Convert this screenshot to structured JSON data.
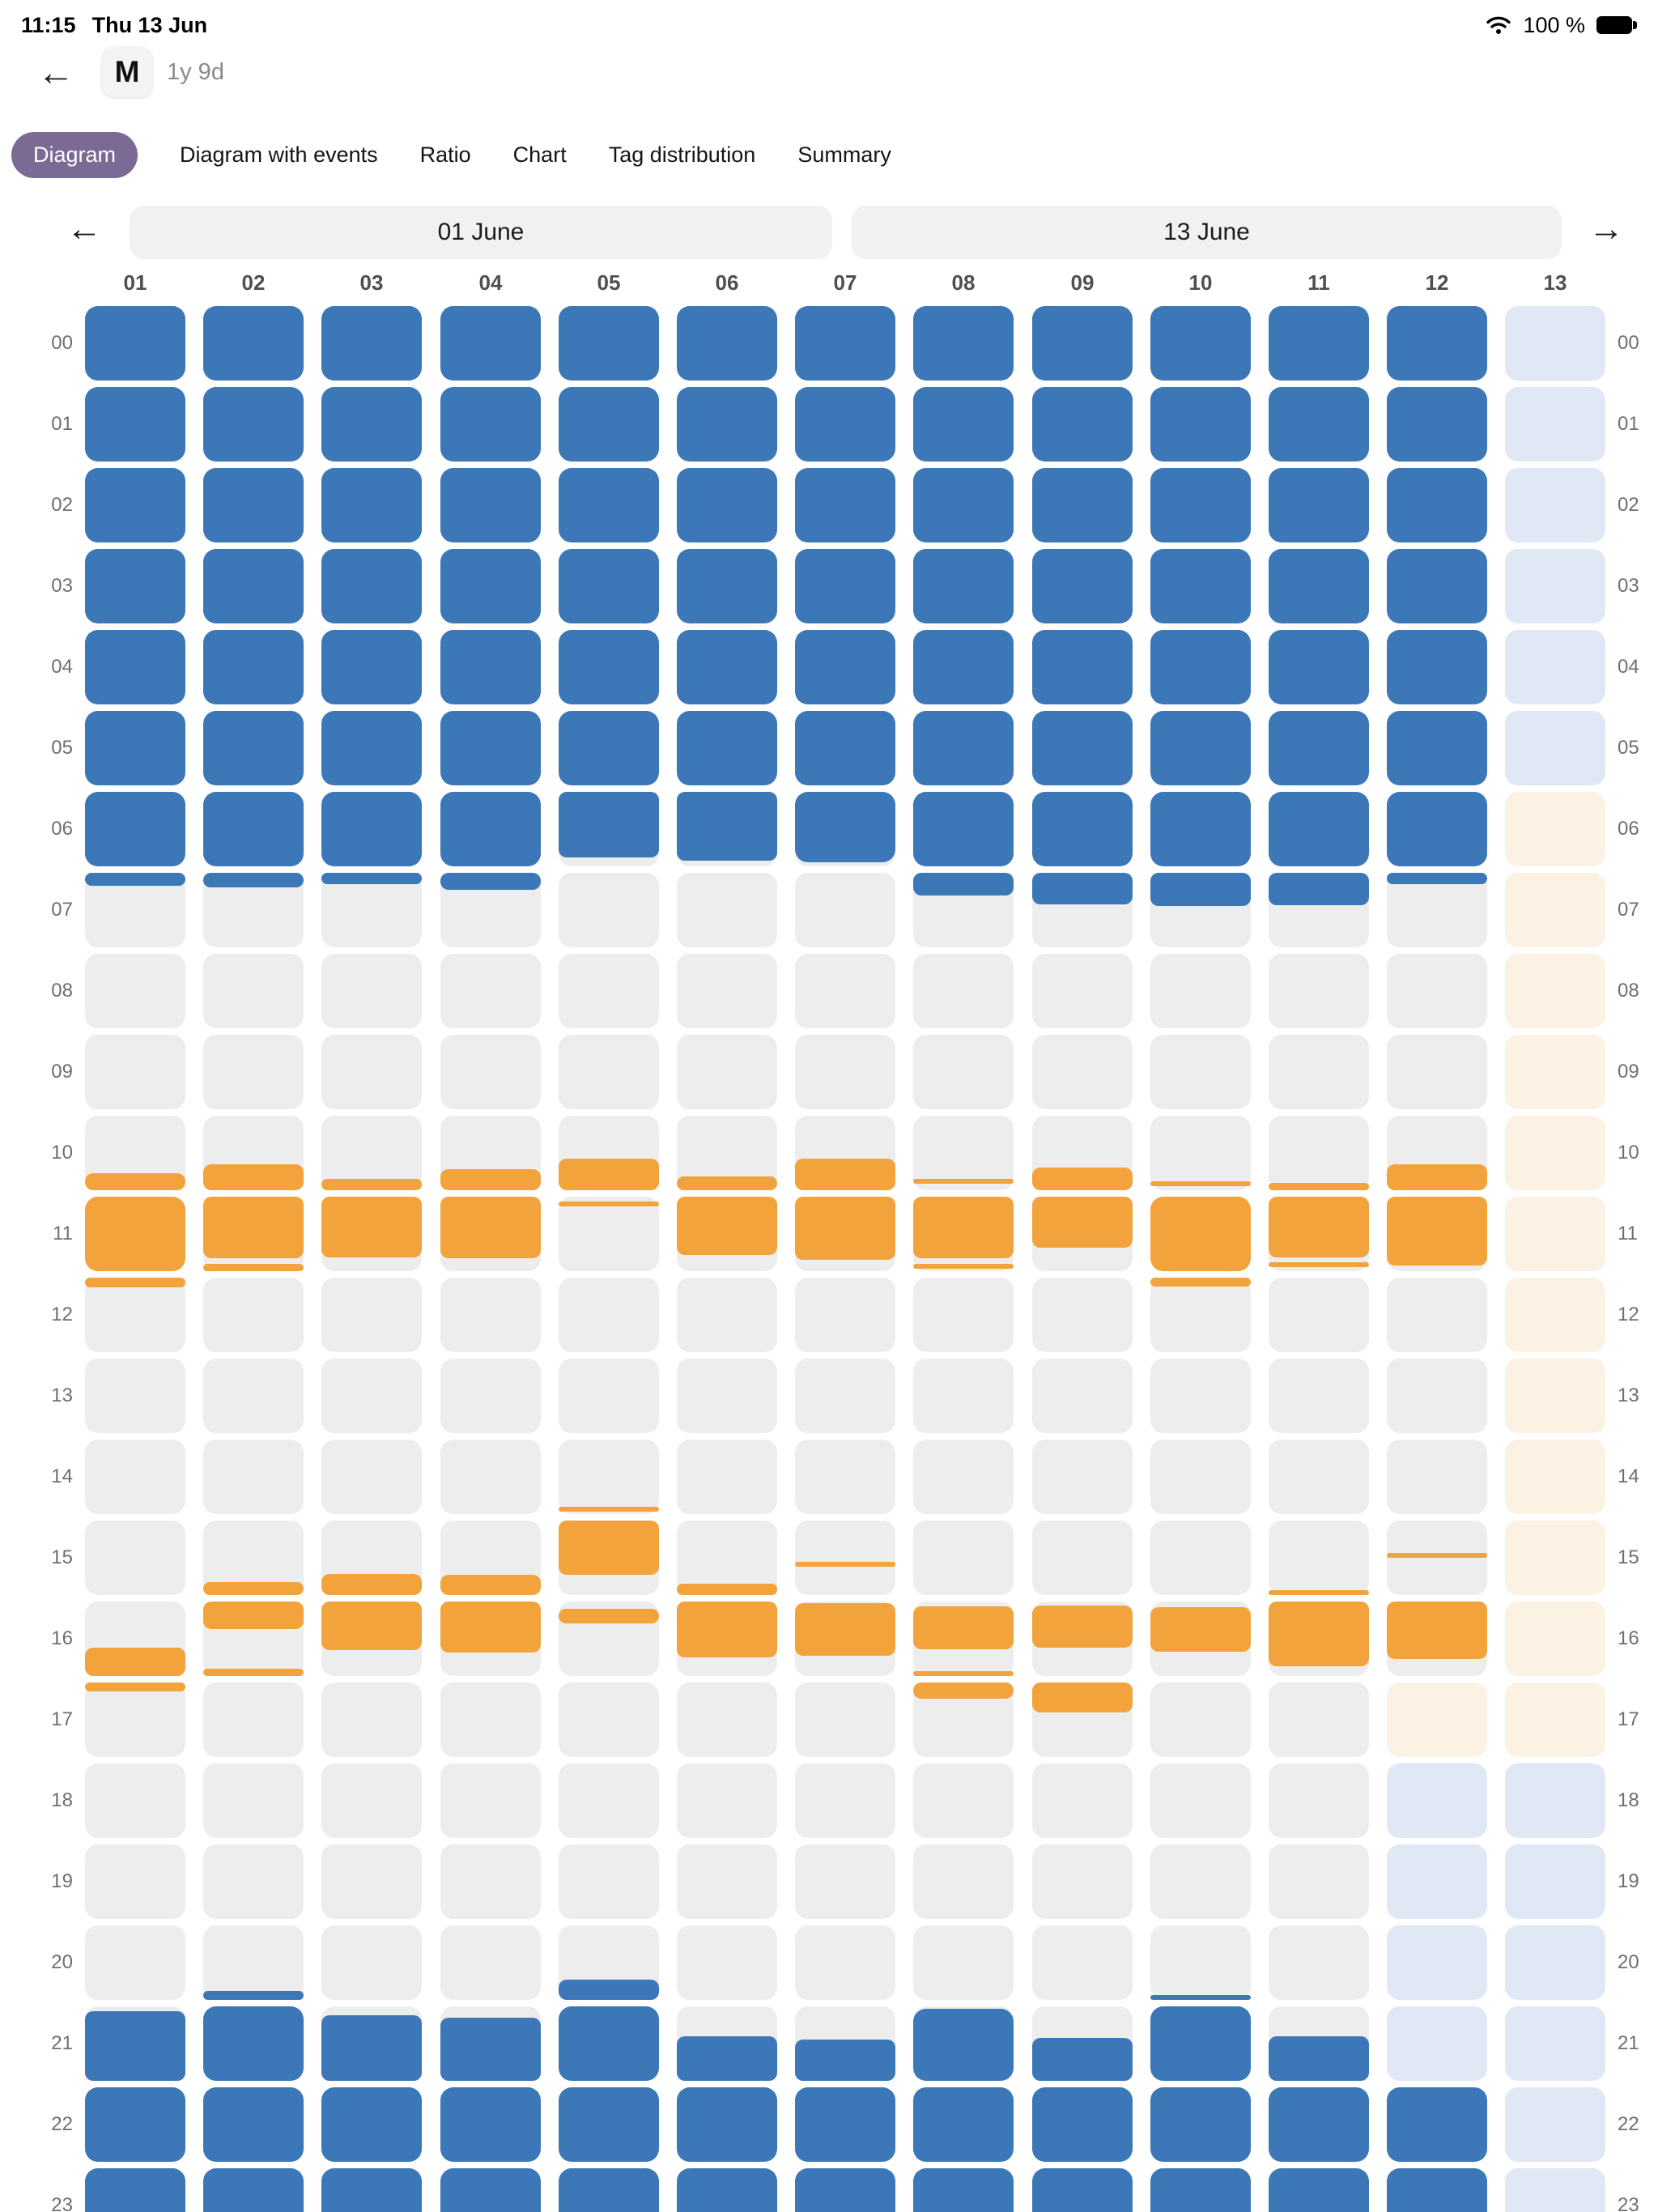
{
  "status_bar": {
    "time": "11:15",
    "date": "Thu 13 Jun",
    "battery_label": "100 %"
  },
  "icons": {
    "back_arrow": "←",
    "prev_arrow": "←",
    "next_arrow": "→"
  },
  "header": {
    "avatar_letter": "M",
    "subtitle": "1y 9d"
  },
  "tabs": {
    "items": [
      {
        "label": "Diagram",
        "active": true
      },
      {
        "label": "Diagram with events",
        "active": false
      },
      {
        "label": "Ratio",
        "active": false
      },
      {
        "label": "Chart",
        "active": false
      },
      {
        "label": "Tag distribution",
        "active": false
      },
      {
        "label": "Summary",
        "active": false
      }
    ]
  },
  "date_nav": {
    "left_range": "01 June",
    "right_range": "13 June"
  },
  "grid": {
    "day_labels": [
      "01",
      "02",
      "03",
      "04",
      "05",
      "06",
      "07",
      "08",
      "09",
      "10",
      "11",
      "12",
      "13"
    ],
    "hour_labels": [
      "00",
      "01",
      "02",
      "03",
      "04",
      "05",
      "06",
      "07",
      "08",
      "09",
      "10",
      "11",
      "12",
      "13",
      "14",
      "15",
      "16",
      "17",
      "18",
      "19",
      "20",
      "21",
      "22",
      "23"
    ],
    "colors": {
      "sleep": "#3C78B7",
      "wake": "#F2A33B",
      "empty": "#EDEDED",
      "projected_sleep": "#DFE8F4",
      "projected_wake": "#FBF2E3"
    },
    "columns": [
      {
        "day": "01",
        "segments": [
          [
            0,
            7.17,
            "sleep"
          ],
          [
            10.77,
            12.13,
            "wake"
          ],
          [
            16.62,
            17.12,
            "wake"
          ],
          [
            21.07,
            24,
            "sleep"
          ]
        ]
      },
      {
        "day": "02",
        "segments": [
          [
            0,
            7.2,
            "sleep"
          ],
          [
            10.65,
            11.83,
            "wake"
          ],
          [
            11.9,
            12.0,
            "wake"
          ],
          [
            15.83,
            16.37,
            "wake"
          ],
          [
            16.9,
            17.0,
            "wake"
          ],
          [
            20.88,
            24,
            "sleep"
          ]
        ]
      },
      {
        "day": "03",
        "segments": [
          [
            0,
            7.15,
            "sleep"
          ],
          [
            10.85,
            11.82,
            "wake"
          ],
          [
            15.72,
            16.65,
            "wake"
          ],
          [
            21.12,
            24,
            "sleep"
          ]
        ]
      },
      {
        "day": "04",
        "segments": [
          [
            0,
            7.23,
            "sleep"
          ],
          [
            10.72,
            11.83,
            "wake"
          ],
          [
            15.73,
            16.68,
            "wake"
          ],
          [
            21.15,
            24,
            "sleep"
          ]
        ]
      },
      {
        "day": "05",
        "segments": [
          [
            0,
            6.88,
            "sleep"
          ],
          [
            10.58,
            11.02,
            "wake"
          ],
          [
            11.07,
            11.13,
            "wake"
          ],
          [
            14.9,
            14.97,
            "wake"
          ],
          [
            15.0,
            15.73,
            "wake"
          ],
          [
            16.1,
            16.3,
            "wake"
          ],
          [
            20.73,
            24,
            "sleep"
          ]
        ]
      },
      {
        "day": "06",
        "segments": [
          [
            0,
            6.92,
            "sleep"
          ],
          [
            10.82,
            11.78,
            "wake"
          ],
          [
            15.85,
            16.75,
            "wake"
          ],
          [
            21.4,
            24,
            "sleep"
          ]
        ]
      },
      {
        "day": "07",
        "segments": [
          [
            0,
            6.95,
            "sleep"
          ],
          [
            10.58,
            11.85,
            "wake"
          ],
          [
            15.55,
            15.62,
            "wake"
          ],
          [
            16.02,
            16.73,
            "wake"
          ],
          [
            21.45,
            24,
            "sleep"
          ]
        ]
      },
      {
        "day": "08",
        "segments": [
          [
            0,
            7.3,
            "sleep"
          ],
          [
            10.85,
            10.92,
            "wake"
          ],
          [
            11.0,
            11.83,
            "wake"
          ],
          [
            11.9,
            11.97,
            "wake"
          ],
          [
            16.07,
            16.65,
            "wake"
          ],
          [
            16.93,
            17.22,
            "wake"
          ],
          [
            21.03,
            24,
            "sleep"
          ]
        ]
      },
      {
        "day": "09",
        "segments": [
          [
            0,
            7.42,
            "sleep"
          ],
          [
            10.7,
            11.68,
            "wake"
          ],
          [
            16.05,
            16.62,
            "wake"
          ],
          [
            16.98,
            17.4,
            "wake"
          ],
          [
            21.42,
            24,
            "sleep"
          ]
        ]
      },
      {
        "day": "10",
        "segments": [
          [
            0,
            7.45,
            "sleep"
          ],
          [
            10.88,
            10.95,
            "wake"
          ],
          [
            11.0,
            12.12,
            "wake"
          ],
          [
            16.08,
            16.68,
            "wake"
          ],
          [
            20.93,
            24,
            "sleep"
          ]
        ]
      },
      {
        "day": "11",
        "segments": [
          [
            0,
            7.43,
            "sleep"
          ],
          [
            10.9,
            11.82,
            "wake"
          ],
          [
            11.88,
            11.94,
            "wake"
          ],
          [
            15.93,
            16.87,
            "wake"
          ],
          [
            21.4,
            24,
            "sleep"
          ]
        ]
      },
      {
        "day": "12",
        "bg": [
          [
            17,
            18,
            "projected_wake"
          ],
          [
            18,
            22,
            "projected_sleep"
          ]
        ],
        "segments": [
          [
            0,
            7.15,
            "sleep"
          ],
          [
            10.65,
            11.92,
            "wake"
          ],
          [
            15.43,
            15.5,
            "wake"
          ],
          [
            16.0,
            16.77,
            "wake"
          ],
          [
            22.0,
            24,
            "sleep"
          ]
        ]
      },
      {
        "day": "13",
        "bg": [
          [
            0,
            6,
            "projected_sleep"
          ],
          [
            6,
            18,
            "projected_wake"
          ],
          [
            18,
            24,
            "projected_sleep"
          ]
        ],
        "segments": []
      }
    ]
  }
}
